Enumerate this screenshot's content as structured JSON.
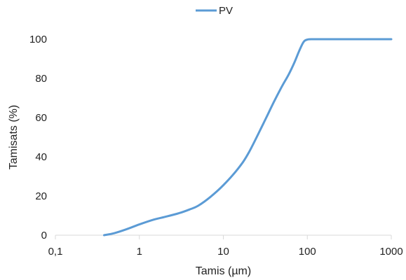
{
  "chart_data": {
    "type": "line",
    "title": "",
    "xlabel": "Tamis (µm)",
    "ylabel": "Tamisats (%)",
    "x_scale": "log",
    "xlim": [
      0.1,
      1000
    ],
    "ylim": [
      0,
      100
    ],
    "x_ticks": [
      {
        "value": 0.1,
        "label": "0,1"
      },
      {
        "value": 1,
        "label": "1"
      },
      {
        "value": 10,
        "label": "10"
      },
      {
        "value": 100,
        "label": "100"
      },
      {
        "value": 1000,
        "label": "1000"
      }
    ],
    "y_ticks": [
      {
        "value": 0,
        "label": "0"
      },
      {
        "value": 20,
        "label": "20"
      },
      {
        "value": 40,
        "label": "40"
      },
      {
        "value": 60,
        "label": "60"
      },
      {
        "value": 80,
        "label": "80"
      },
      {
        "value": 100,
        "label": "100"
      }
    ],
    "grid": false,
    "legend_position": "top-center",
    "series": [
      {
        "name": "PV",
        "color": "#5B9BD5",
        "x": [
          0.38,
          0.5,
          0.7,
          1,
          1.5,
          2,
          3,
          4,
          5,
          7,
          10,
          15,
          20,
          30,
          40,
          50,
          60,
          70,
          80,
          90,
          100,
          120,
          200,
          500,
          1000
        ],
        "y": [
          0,
          1,
          3,
          5.5,
          8,
          9.3,
          11.3,
          13.2,
          15,
          19.5,
          25.5,
          34,
          42,
          57,
          68,
          76,
          82,
          88,
          94,
          98.5,
          99.8,
          100,
          100,
          100,
          100
        ]
      }
    ]
  }
}
